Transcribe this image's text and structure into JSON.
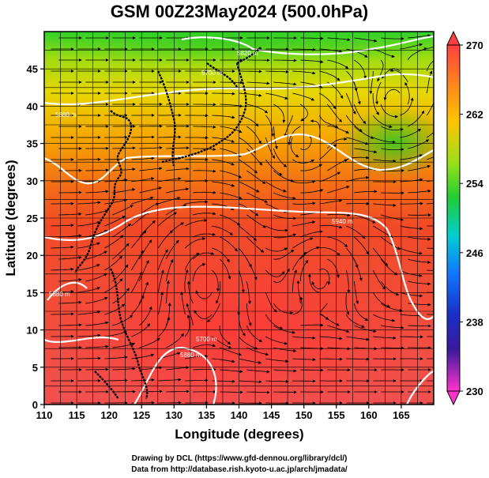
{
  "figure": {
    "title": "GSM 00Z23May2024 (500.0hPa)",
    "xlabel": "Longitude (degrees)",
    "ylabel": "Latitude  (degrees)",
    "credit_line1": "Drawing by DCL (https://www.gfd-dennou.org/library/dcl/)",
    "credit_line2": "Data from http://database.rish.kyoto-u.ac.jp/arch/jmadata/"
  },
  "map": {
    "lon_range": [
      110,
      170
    ],
    "lat_range": [
      0,
      50
    ],
    "x_ticks": [
      "110",
      "115",
      "120",
      "125",
      "130",
      "135",
      "140",
      "145",
      "150",
      "155",
      "160",
      "165"
    ],
    "y_ticks": [
      "0",
      "5",
      "10",
      "15",
      "20",
      "25",
      "30",
      "35",
      "40",
      "45"
    ],
    "grid": true,
    "field": "temperature (K), shaded",
    "vectors": "wind streamlines",
    "contour_labels": [
      "5820 m",
      "5700 m",
      "5880 m",
      "5940 m",
      "5880 m",
      "5700 m",
      "5880 m"
    ]
  },
  "colorbar": {
    "ticks": [
      "270",
      "262",
      "254",
      "246",
      "238",
      "230"
    ],
    "min": 230,
    "max": 270,
    "colors": {
      "top": "#ff3b3b",
      "orange": "#ff9900",
      "yellow": "#e9e000",
      "green": "#33cc11",
      "cyan": "#00cccc",
      "blue": "#1166ff",
      "navy": "#1a1aa0",
      "bottom": "#ff33cc"
    }
  }
}
